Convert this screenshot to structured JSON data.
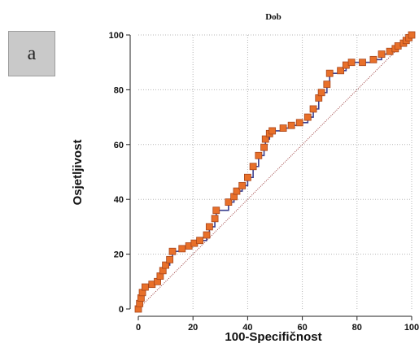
{
  "panel_label": "a",
  "colors": {
    "roc_line": "#3a3f8f",
    "diagonal": "#9a3a3a",
    "marker_fill": "#e8702a",
    "marker_stroke": "#a8451a",
    "grid": "#b5b5b5"
  },
  "chart_data": {
    "type": "line",
    "title": "Dob",
    "xlabel": "100-Specifičnost",
    "ylabel": "Osjetljivost",
    "xlim": [
      0,
      100
    ],
    "ylim": [
      0,
      100
    ],
    "xticks": [
      0,
      20,
      40,
      60,
      80,
      100
    ],
    "yticks": [
      0,
      20,
      40,
      60,
      80,
      100
    ],
    "grid": true,
    "reference_line": {
      "x": [
        0,
        100
      ],
      "y": [
        0,
        100
      ],
      "style": "dotted"
    },
    "series": [
      {
        "marker": "square",
        "x": [
          0,
          0.5,
          1,
          1.5,
          2.5,
          5,
          7,
          8,
          9,
          10,
          11.5,
          12.5,
          16,
          18.5,
          20.5,
          22.5,
          25,
          26,
          28,
          28.5,
          33,
          35,
          36,
          38,
          40,
          42,
          44,
          46,
          46.5,
          48,
          49,
          53,
          56,
          59,
          62,
          64,
          66,
          67,
          69,
          70,
          74,
          76,
          78,
          82,
          86,
          89,
          92,
          94,
          95,
          97,
          98,
          99,
          100
        ],
        "y": [
          0,
          2,
          4,
          6,
          8,
          9,
          10,
          12,
          14,
          16,
          18,
          21,
          22,
          23,
          24,
          25,
          27,
          30,
          33,
          36,
          39,
          41,
          43,
          45,
          48,
          52,
          56,
          59,
          62,
          64,
          65,
          66,
          67,
          68,
          70,
          73,
          77,
          79,
          82,
          86,
          87,
          89,
          90,
          90,
          91,
          93,
          94,
          95,
          96,
          97,
          98,
          99,
          100
        ]
      }
    ]
  }
}
